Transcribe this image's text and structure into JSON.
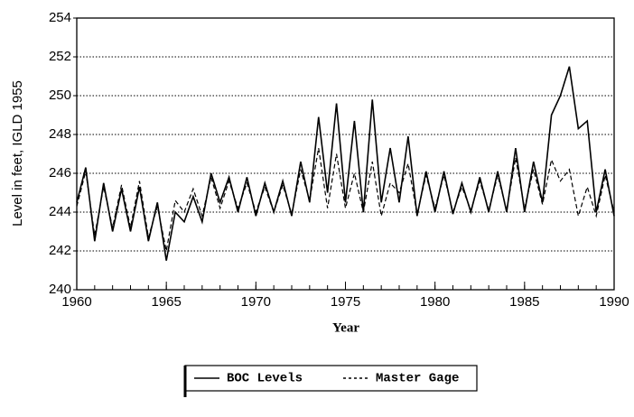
{
  "chart_data": {
    "type": "line",
    "ylabel": "Level in feet, IGLD 1955",
    "xlabel": "Year",
    "xlim": [
      1960,
      1990
    ],
    "xticks": [
      1960,
      1965,
      1970,
      1975,
      1980,
      1985,
      1990
    ],
    "ylim": [
      240,
      254
    ],
    "yticks": [
      240,
      242,
      244,
      246,
      248,
      250,
      252,
      254
    ],
    "grid": true,
    "legend": "bottom",
    "x": [
      1960,
      1960.5,
      1961,
      1961.5,
      1962,
      1962.5,
      1963,
      1963.5,
      1964,
      1964.5,
      1965,
      1965.5,
      1966,
      1966.5,
      1967,
      1967.5,
      1968,
      1968.5,
      1969,
      1969.5,
      1970,
      1970.5,
      1971,
      1971.5,
      1972,
      1972.5,
      1973,
      1973.5,
      1974,
      1974.5,
      1975,
      1975.5,
      1976,
      1976.5,
      1977,
      1977.5,
      1978,
      1978.5,
      1979,
      1979.5,
      1980,
      1980.5,
      1981,
      1981.5,
      1982,
      1982.5,
      1983,
      1983.5,
      1984,
      1984.5,
      1985,
      1985.5,
      1986,
      1986.5,
      1987,
      1987.5,
      1988,
      1988.5,
      1989,
      1989.5,
      1990
    ],
    "series": [
      {
        "name": "BOC Levels",
        "color": "#000000",
        "dash": false,
        "values": [
          244.5,
          246.3,
          242.5,
          245.5,
          243,
          245.2,
          243,
          245.3,
          242.5,
          244.5,
          241.5,
          244,
          243.5,
          244.8,
          243.5,
          246,
          244.5,
          245.8,
          244,
          245.8,
          243.8,
          245.5,
          244,
          245.6,
          243.8,
          246.6,
          244.5,
          248.9,
          245,
          249.6,
          244.5,
          248.7,
          244,
          249.8,
          244.5,
          247.3,
          244.5,
          247.9,
          243.8,
          246.1,
          244,
          246.1,
          243.9,
          245.5,
          244,
          245.8,
          244,
          246.1,
          244,
          247.3,
          244,
          246.6,
          244.5,
          249,
          250,
          251.5,
          248.3,
          248.7,
          244,
          246.2,
          243.8
        ]
      },
      {
        "name": "Master Gage",
        "color": "#000000",
        "dash": true,
        "values": [
          244.3,
          246.1,
          242.8,
          245.3,
          243.2,
          245.4,
          243.2,
          245.6,
          242.7,
          244.3,
          242,
          244.6,
          244,
          245.2,
          243.8,
          245.8,
          244.2,
          245.6,
          244.2,
          245.5,
          244,
          245.3,
          244,
          245.4,
          243.9,
          246.2,
          244.6,
          247.3,
          244.2,
          247,
          244.2,
          246,
          244,
          246.6,
          243.8,
          245.5,
          245,
          246.5,
          243.9,
          245.9,
          244.2,
          245.9,
          244,
          245.3,
          244.1,
          245.6,
          244.1,
          245.9,
          244.1,
          246.8,
          244.2,
          246.2,
          244.4,
          246.7,
          245.6,
          246.2,
          243.8,
          245.3,
          243.8,
          245.9,
          244
        ]
      }
    ]
  }
}
